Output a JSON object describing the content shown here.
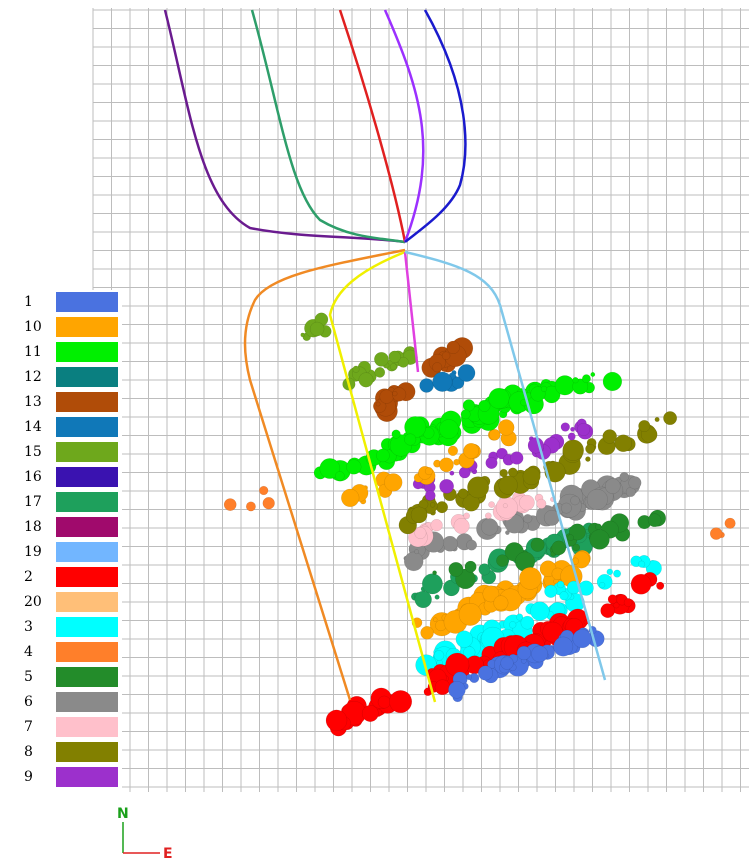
{
  "legend": {
    "items": [
      {
        "label": "1",
        "color": "#4a72e0"
      },
      {
        "label": "10",
        "color": "#ffa500"
      },
      {
        "label": "11",
        "color": "#00f000"
      },
      {
        "label": "12",
        "color": "#0a7f80"
      },
      {
        "label": "13",
        "color": "#b04c08"
      },
      {
        "label": "14",
        "color": "#1078b8"
      },
      {
        "label": "15",
        "color": "#6ea81c"
      },
      {
        "label": "16",
        "color": "#3a12b0"
      },
      {
        "label": "17",
        "color": "#1ea05c"
      },
      {
        "label": "18",
        "color": "#a00a6c"
      },
      {
        "label": "19",
        "color": "#72b6ff"
      },
      {
        "label": "2",
        "color": "#ff0000"
      },
      {
        "label": "20",
        "color": "#ffbf78"
      },
      {
        "label": "3",
        "color": "#00ffff"
      },
      {
        "label": "4",
        "color": "#ff7f2a"
      },
      {
        "label": "5",
        "color": "#238c2a"
      },
      {
        "label": "6",
        "color": "#8a8a8a"
      },
      {
        "label": "7",
        "color": "#ffc0cb"
      },
      {
        "label": "8",
        "color": "#828000"
      },
      {
        "label": "9",
        "color": "#9c30cc"
      }
    ]
  },
  "compass": {
    "north": "N",
    "east": "E"
  }
}
